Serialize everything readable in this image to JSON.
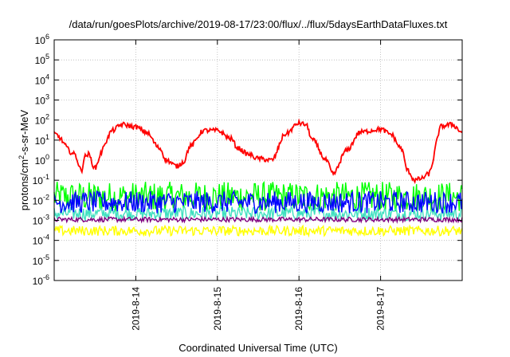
{
  "chart_data": {
    "type": "line",
    "title": "/data/run/goesPlots/archive/2019-08-17/23:00/flux/../flux/5daysEarthDataFluxes.txt",
    "xlabel": "Coordinated Universal Time (UTC)",
    "ylabel": {
      "pre": "protons/cm",
      "sup": "2",
      "post": "-s-sr-MeV"
    },
    "x_range": [
      "2019-08-13T00:00",
      "2019-08-18T00:00"
    ],
    "x_ticks": [
      "2019-8-14",
      "2019-8-15",
      "2019-8-16",
      "2019-8-17"
    ],
    "y_scale": "log",
    "ylim": [
      1e-06,
      1000000.0
    ],
    "y_ticks": [
      {
        "base": "10",
        "exp": "6"
      },
      {
        "base": "10",
        "exp": "5"
      },
      {
        "base": "10",
        "exp": "4"
      },
      {
        "base": "10",
        "exp": "3"
      },
      {
        "base": "10",
        "exp": "2"
      },
      {
        "base": "10",
        "exp": "1"
      },
      {
        "base": "10",
        "exp": "0"
      },
      {
        "base": "10",
        "exp": "-1"
      },
      {
        "base": "10",
        "exp": "-2"
      },
      {
        "base": "10",
        "exp": "-3"
      },
      {
        "base": "10",
        "exp": "-4"
      },
      {
        "base": "10",
        "exp": "-5"
      },
      {
        "base": "10",
        "exp": "-6"
      }
    ],
    "grid": true,
    "series": [
      {
        "color": "#ff0000",
        "style": "smooth",
        "x": [
          "2019-08-13T00:00",
          "2019-08-13T06:00",
          "2019-08-13T08:00",
          "2019-08-13T09:00",
          "2019-08-13T10:00",
          "2019-08-13T12:00",
          "2019-08-13T14:00",
          "2019-08-13T15:00",
          "2019-08-13T17:00",
          "2019-08-13T20:00",
          "2019-08-14T00:00",
          "2019-08-14T03:00",
          "2019-08-14T07:00",
          "2019-08-14T09:00",
          "2019-08-14T12:00",
          "2019-08-14T14:00",
          "2019-08-14T16:00",
          "2019-08-14T20:00",
          "2019-08-15T00:00",
          "2019-08-15T04:00",
          "2019-08-15T06:00",
          "2019-08-15T09:00",
          "2019-08-15T12:00",
          "2019-08-15T16:00",
          "2019-08-15T20:00",
          "2019-08-16T00:00",
          "2019-08-16T02:00",
          "2019-08-16T04:00",
          "2019-08-16T08:00",
          "2019-08-16T10:00",
          "2019-08-16T14:00",
          "2019-08-16T18:00",
          "2019-08-17T00:00",
          "2019-08-17T03:00",
          "2019-08-17T06:00",
          "2019-08-17T08:00",
          "2019-08-17T10:00",
          "2019-08-17T12:00",
          "2019-08-17T14:00",
          "2019-08-17T18:00",
          "2019-08-17T21:00",
          "2019-08-18T00:00"
        ],
        "values": [
          20,
          2,
          0.3,
          1.5,
          2,
          0.4,
          2.5,
          8,
          30,
          60,
          45,
          25,
          4,
          1,
          0.5,
          0.8,
          5,
          30,
          30,
          12,
          4,
          2,
          1.2,
          1,
          20,
          70,
          60,
          10,
          1,
          0.2,
          3,
          25,
          35,
          20,
          4,
          0.3,
          0.1,
          0.12,
          0.2,
          50,
          60,
          25
        ]
      },
      {
        "color": "#00ff00",
        "style": "noise",
        "center": 0.015,
        "spread": 0.75
      },
      {
        "color": "#40e0c0",
        "style": "noise",
        "center": 0.0022,
        "spread": 0.35
      },
      {
        "color": "#0000ff",
        "style": "noise",
        "center": 0.008,
        "spread": 0.55
      },
      {
        "color": "#800080",
        "style": "noise",
        "center": 0.0011,
        "spread": 0.12
      },
      {
        "color": "#ffff00",
        "style": "noise",
        "center": 0.0003,
        "spread": 0.25
      }
    ]
  }
}
